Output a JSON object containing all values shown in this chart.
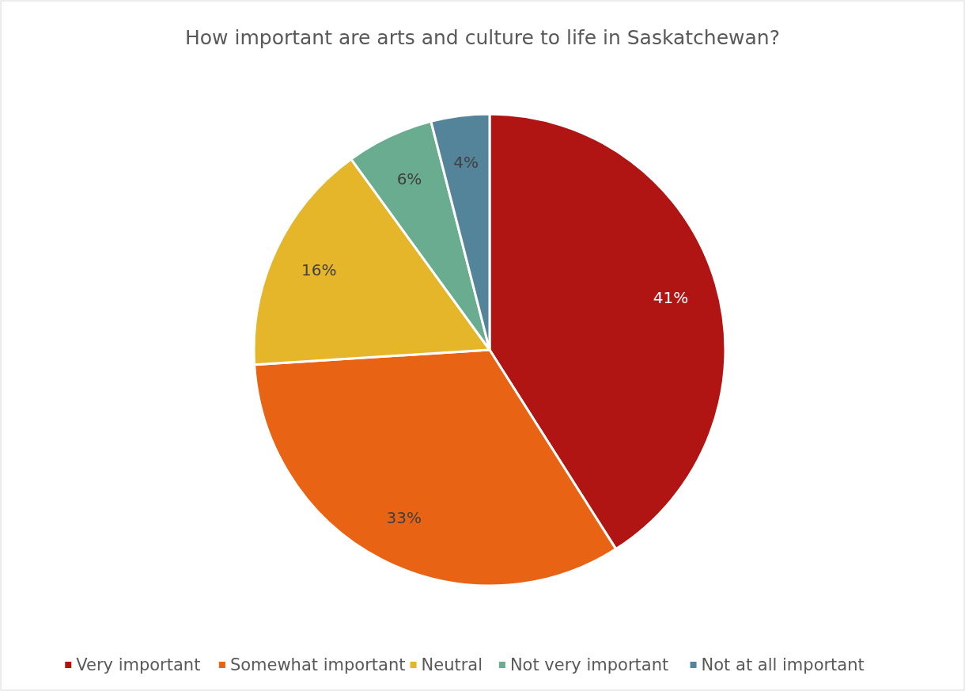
{
  "chart_data": {
    "type": "pie",
    "title": "How important are arts and culture to life in Saskatchewan?",
    "categories": [
      "Very important",
      "Somewhat important",
      "Neutral",
      "Not very important",
      "Not at all important"
    ],
    "values": [
      41,
      33,
      16,
      6,
      4
    ],
    "colors": [
      "#b01513",
      "#e86313",
      "#e5b629",
      "#6aac90",
      "#54849a"
    ],
    "value_labels": [
      "41%",
      "33%",
      "16%",
      "6%",
      "4%"
    ],
    "legend": "bottom"
  }
}
